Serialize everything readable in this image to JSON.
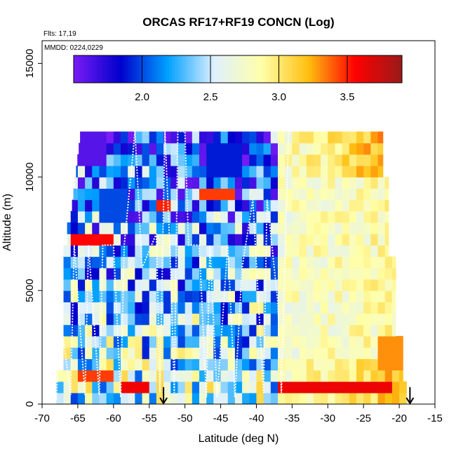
{
  "chart_data": {
    "type": "heatmap",
    "title": "ORCAS RF17+RF19 CONCN (Log)",
    "flights_note": "Flts: 17,19",
    "date_note": "MMDD: 0224,0229",
    "xlabel": "Latitude (deg N)",
    "ylabel": "Altitude (m)",
    "xlim": [
      -70,
      -15
    ],
    "ylim": [
      0,
      16000
    ],
    "x_ticks": [
      -70,
      -65,
      -60,
      -55,
      -50,
      -45,
      -40,
      -35,
      -30,
      -25,
      -20,
      -15
    ],
    "x_tick_labels": [
      "-70",
      "-65",
      "-60",
      "-55",
      "-50",
      "-45",
      "-40",
      "-35",
      "-30",
      "-25",
      "-20",
      "-15"
    ],
    "y_ticks": [
      0,
      5000,
      10000,
      15000
    ],
    "y_tick_labels": [
      "0",
      "5000",
      "10000",
      "15000"
    ],
    "colorbar": {
      "range": [
        1.5,
        3.9
      ],
      "ticks": [
        2.0,
        2.5,
        3.0,
        3.5
      ],
      "tick_labels": [
        "2.0",
        "2.5",
        "3.0",
        "3.5"
      ],
      "colors": [
        "#7a1cf5",
        "#0000cc",
        "#00a0ff",
        "#dff0ff",
        "#ffffaa",
        "#ffc010",
        "#ff0000",
        "#991a1a"
      ]
    },
    "grid_spec": {
      "lat_start": -68,
      "lat_end": -19,
      "lat_step": 1,
      "alt_step": 500,
      "alt_max": 12000
    },
    "ridge_lat": -37.5,
    "high_bands": [
      {
        "alt_min": 500,
        "alt_max": 900,
        "lat_min": -37,
        "lat_max": -21,
        "value": 3.62
      },
      {
        "alt_min": 6800,
        "alt_max": 7400,
        "lat_min": -66,
        "lat_max": -60,
        "value": 3.55
      },
      {
        "alt_min": 8600,
        "alt_max": 9100,
        "lat_min": -48,
        "lat_max": -43,
        "value": 3.45
      },
      {
        "alt_min": 8300,
        "alt_max": 8800,
        "lat_min": -54,
        "lat_max": -52,
        "value": 3.5
      },
      {
        "alt_min": 900,
        "alt_max": 1500,
        "lat_min": -65,
        "lat_max": -60,
        "value": 3.45
      },
      {
        "alt_min": 500,
        "alt_max": 900,
        "lat_min": -59,
        "lat_max": -55,
        "value": 3.6
      },
      {
        "alt_min": 1500,
        "alt_max": 2800,
        "lat_min": -23,
        "lat_max": -19,
        "value": 3.3
      }
    ],
    "low_bands": [
      {
        "alt_min": 10500,
        "alt_max": 12000,
        "lat_min": -66,
        "lat_max": -61,
        "value": 1.6
      },
      {
        "alt_min": 10000,
        "alt_max": 11200,
        "lat_min": -47,
        "lat_max": -42,
        "value": 1.9
      },
      {
        "alt_min": 8000,
        "alt_max": 9500,
        "lat_min": -62,
        "lat_max": -58,
        "value": 2.0
      }
    ],
    "flight_track": {
      "lat": [
        -68,
        -67.5,
        -66,
        -65.5,
        -64,
        -63.5,
        -62,
        -61.5,
        -60,
        -59,
        -58.5,
        -57,
        -56,
        -54,
        -53.5,
        -52.8,
        -52,
        -51.5,
        -51,
        -50,
        -49.5,
        -48,
        -47,
        -46.5,
        -45.5,
        -44,
        -43,
        -42,
        -40.5,
        -39,
        -38.5,
        -37,
        -36.5,
        -35.5
      ],
      "alt": [
        200,
        4000,
        400,
        7000,
        400,
        7000,
        400,
        7000,
        7000,
        300,
        7000,
        12000,
        6000,
        7500,
        500,
        12000,
        6000,
        500,
        12000,
        12000,
        7000,
        7000,
        300,
        7000,
        300,
        7000,
        300,
        6000,
        9000,
        500,
        9000,
        4500,
        500,
        12000
      ]
    },
    "markers": [
      {
        "lat": -53,
        "label": "↓"
      },
      {
        "lat": -18.5,
        "label": "↓"
      }
    ]
  }
}
